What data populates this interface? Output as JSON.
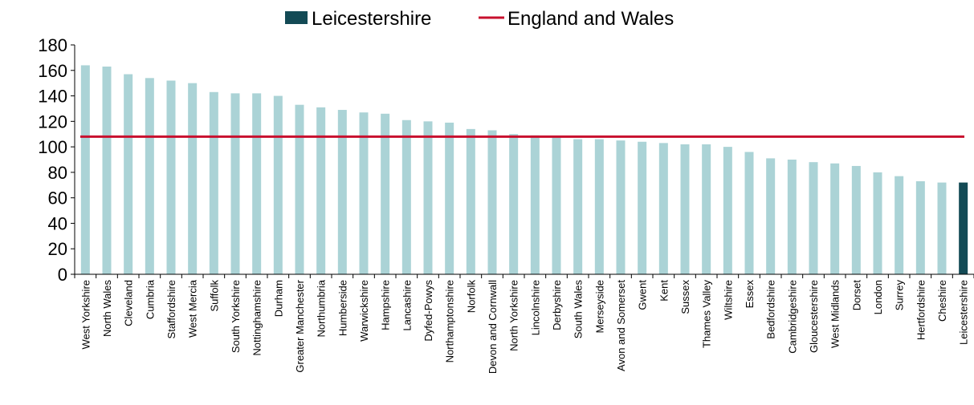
{
  "chart_data": {
    "type": "bar",
    "title": "",
    "xlabel": "",
    "ylabel": "",
    "ylim": [
      0,
      180
    ],
    "yticks": [
      0,
      20,
      40,
      60,
      80,
      100,
      120,
      140,
      160,
      180
    ],
    "grid": false,
    "legend_position": "top-center",
    "legend": [
      {
        "label": "Leicestershire",
        "kind": "bar",
        "color": "#134a55"
      },
      {
        "label": "England and Wales",
        "kind": "line",
        "color": "#c8102e"
      }
    ],
    "categories": [
      "West Yorkshire",
      "North Wales",
      "Cleveland",
      "Cumbria",
      "Staffordshire",
      "West Mercia",
      "Suffolk",
      "South Yorkshire",
      "Nottinghamshire",
      "Durham",
      "Greater Manchester",
      "Northumbria",
      "Humberside",
      "Warwickshire",
      "Hampshire",
      "Lancashire",
      "Dyfed-Powys",
      "Northamptonshire",
      "Norfolk",
      "Devon and Cornwall",
      "North Yorkshire",
      "Lincolnshire",
      "Derbyshire",
      "South Wales",
      "Merseyside",
      "Avon and Somerset",
      "Gwent",
      "Kent",
      "Sussex",
      "Thames Valley",
      "Wiltshire",
      "Essex",
      "Bedfordshire",
      "Cambridgeshire",
      "Gloucestershire",
      "West Midlands",
      "Dorset",
      "London",
      "Surrey",
      "Hertfordshire",
      "Cheshire",
      "Leicestershire"
    ],
    "values": [
      164,
      163,
      157,
      154,
      152,
      150,
      143,
      142,
      142,
      140,
      133,
      131,
      129,
      127,
      126,
      121,
      120,
      119,
      114,
      113,
      110,
      109,
      108,
      106,
      106,
      105,
      104,
      103,
      102,
      102,
      100,
      96,
      91,
      90,
      88,
      87,
      85,
      80,
      77,
      73,
      72,
      72
    ],
    "highlight_category": "Leicestershire",
    "bar_color": "#abd3d6",
    "highlight_color": "#134a55",
    "reference_line": {
      "name": "England and Wales",
      "value": 108,
      "color": "#c8102e"
    }
  }
}
